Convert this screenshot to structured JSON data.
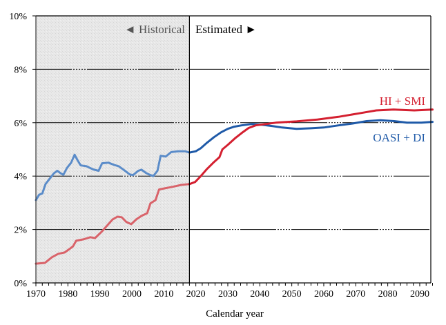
{
  "chart_data": {
    "type": "line",
    "title": "",
    "xlabel": "Calendar year",
    "ylabel": "",
    "xlim": [
      1970,
      2094
    ],
    "ylim": [
      0,
      10
    ],
    "x_ticks": [
      1970,
      1980,
      1990,
      2000,
      2010,
      2020,
      2030,
      2040,
      2050,
      2060,
      2070,
      2080,
      2090
    ],
    "x_tick_labels": [
      "1970",
      "1980",
      "1990",
      "2000",
      "2010",
      "2020",
      "2030",
      "2040",
      "2050",
      "2060",
      "2070",
      "2080",
      "2090"
    ],
    "y_ticks": [
      0,
      2,
      4,
      6,
      8,
      10
    ],
    "y_tick_labels": [
      "0%",
      "2%",
      "4%",
      "6%",
      "8%",
      "10%"
    ],
    "grid": true,
    "historical_end_year": 2018,
    "annotations": {
      "historical": "◄ Historical",
      "estimated": "Estimated ►"
    },
    "colors": {
      "oasi_hist": "#5b8cc9",
      "oasi_proj": "#1f5aa8",
      "hi_hist": "#d9636a",
      "hi_proj": "#d42030",
      "shade": "#e6e6e6",
      "historical_text": "#555555"
    },
    "series": [
      {
        "name": "OASI + DI",
        "label_color": "#1f5aa8",
        "historical": {
          "x": [
            1970,
            1971,
            1972,
            1973,
            1974.3,
            1975.6,
            1976.7,
            1977.8,
            1978.6,
            1979.7,
            1981,
            1982.1,
            1983,
            1984,
            1985.8,
            1987.9,
            1989.6,
            1990.7,
            1992.7,
            1994.4,
            1995.9,
            1997.6,
            1999.4,
            2000.4,
            2002,
            2003,
            2004.5,
            2005.8,
            2006.7,
            2008,
            2009,
            2010.6,
            2012.3,
            2014.5,
            2016.6,
            2018
          ],
          "y": [
            3.1,
            3.3,
            3.35,
            3.7,
            3.9,
            4.1,
            4.2,
            4.1,
            4.05,
            4.3,
            4.5,
            4.8,
            4.6,
            4.4,
            4.37,
            4.25,
            4.2,
            4.48,
            4.5,
            4.42,
            4.37,
            4.22,
            4.06,
            4.04,
            4.2,
            4.24,
            4.11,
            4.04,
            4.0,
            4.2,
            4.76,
            4.73,
            4.9,
            4.93,
            4.93,
            4.88
          ]
        },
        "estimated": {
          "x": [
            2018,
            2020,
            2021.5,
            2023.5,
            2025.7,
            2027.9,
            2030,
            2032,
            2034.3,
            2037.5,
            2040.8,
            2044,
            2047,
            2051.5,
            2056,
            2060,
            2064.6,
            2069,
            2073.4,
            2077.7,
            2082,
            2086,
            2090.5,
            2094
          ],
          "y": [
            4.88,
            4.93,
            5.04,
            5.25,
            5.46,
            5.64,
            5.77,
            5.85,
            5.9,
            5.95,
            5.92,
            5.87,
            5.82,
            5.77,
            5.79,
            5.82,
            5.9,
            5.97,
            6.06,
            6.09,
            6.06,
            6.0,
            6.0,
            6.03
          ]
        }
      },
      {
        "name": "HI + SMI",
        "label_color": "#d42030",
        "historical": {
          "x": [
            1970,
            1972.8,
            1975,
            1977,
            1979,
            1980.5,
            1981.6,
            1982.6,
            1984.8,
            1987,
            1988.5,
            1990.5,
            1992.3,
            1994,
            1995.5,
            1996.8,
            1998.3,
            1999.8,
            2001.4,
            2003,
            2004.8,
            2005.8,
            2007.4,
            2008.5,
            2010.2,
            2012.8,
            2015.4,
            2018
          ],
          "y": [
            0.72,
            0.75,
            0.96,
            1.09,
            1.14,
            1.27,
            1.37,
            1.58,
            1.63,
            1.71,
            1.68,
            1.91,
            2.15,
            2.38,
            2.48,
            2.46,
            2.28,
            2.2,
            2.38,
            2.51,
            2.61,
            2.98,
            3.1,
            3.5,
            3.54,
            3.6,
            3.67,
            3.7
          ]
        },
        "estimated": {
          "x": [
            2018,
            2019.8,
            2021.4,
            2023.5,
            2025.7,
            2027.4,
            2028.3,
            2030,
            2032.2,
            2034.3,
            2036.5,
            2038.7,
            2042,
            2045,
            2051.5,
            2058,
            2064.6,
            2071,
            2076.4,
            2081.8,
            2088.3,
            2094
          ],
          "y": [
            3.7,
            3.78,
            3.98,
            4.27,
            4.53,
            4.71,
            5.0,
            5.17,
            5.41,
            5.61,
            5.8,
            5.9,
            5.95,
            6.0,
            6.05,
            6.12,
            6.22,
            6.35,
            6.46,
            6.49,
            6.46,
            6.49
          ]
        }
      }
    ]
  }
}
